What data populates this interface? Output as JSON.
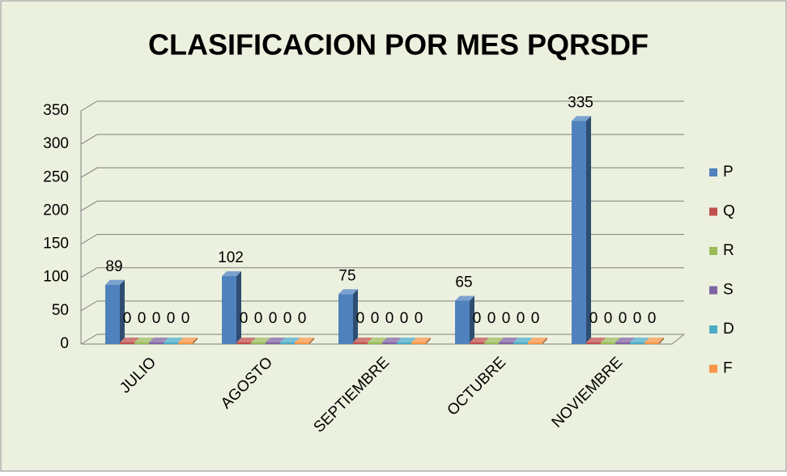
{
  "chart_data": {
    "type": "bar",
    "title": "CLASIFICACION POR MES PQRSDF",
    "categories": [
      "JULIO",
      "AGOSTO",
      "SEPTIEMBRE",
      "OCTUBRE",
      "NOVIEMBRE"
    ],
    "series": [
      {
        "name": "P",
        "color": "#4f81bd",
        "values": [
          89,
          102,
          75,
          65,
          335
        ]
      },
      {
        "name": "Q",
        "color": "#c0504d",
        "values": [
          0,
          0,
          0,
          0,
          0
        ]
      },
      {
        "name": "R",
        "color": "#9bbb59",
        "values": [
          0,
          0,
          0,
          0,
          0
        ]
      },
      {
        "name": "S",
        "color": "#8064a2",
        "values": [
          0,
          0,
          0,
          0,
          0
        ]
      },
      {
        "name": "D",
        "color": "#4bacc6",
        "values": [
          0,
          0,
          0,
          0,
          0
        ]
      },
      {
        "name": "F",
        "color": "#f79646",
        "values": [
          0,
          0,
          0,
          0,
          0
        ]
      }
    ],
    "ylim": [
      0,
      350
    ],
    "yticks": [
      0,
      50,
      100,
      150,
      200,
      250,
      300,
      350
    ],
    "grid": true,
    "legend": "right"
  }
}
